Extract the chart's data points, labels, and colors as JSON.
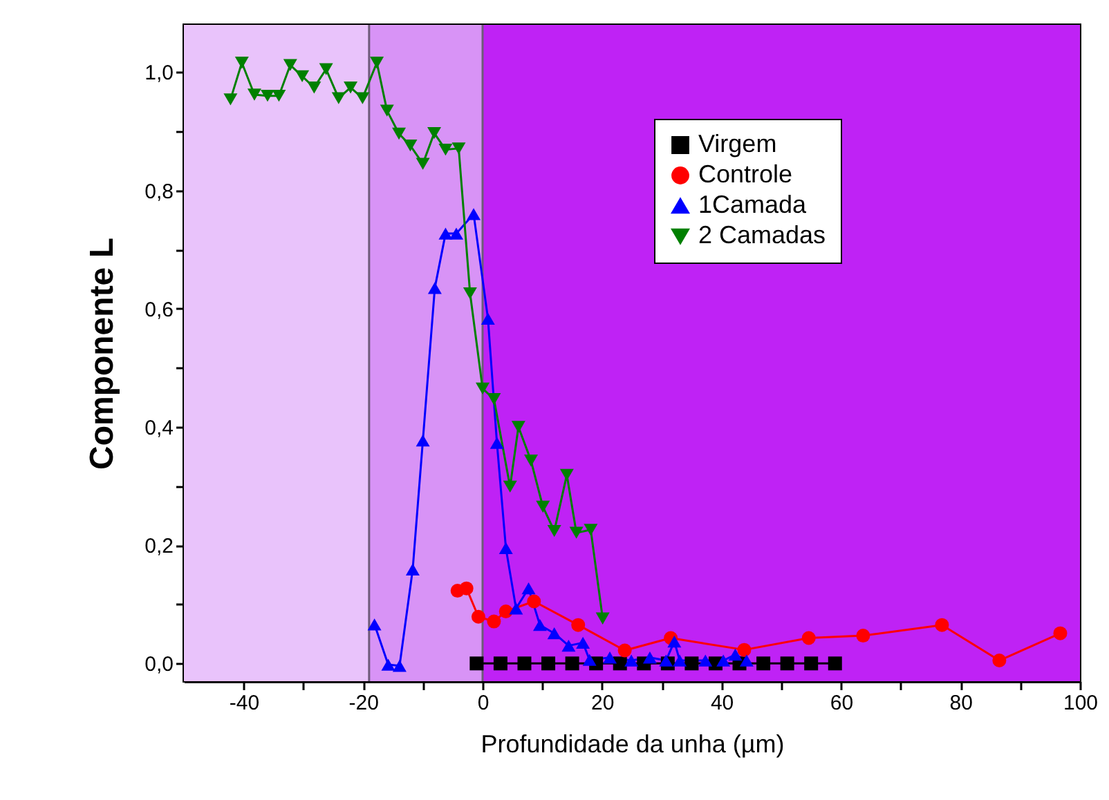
{
  "chart_data": {
    "type": "line",
    "xlabel": "Profundidade da unha (µm)",
    "ylabel": "Componente L",
    "xlim": [
      -50,
      100
    ],
    "ylim": [
      -0.03,
      1.08
    ],
    "xticks": [
      -40,
      {
        "value": -30,
        "label": null
      },
      -20,
      {
        "value": -10,
        "label": null
      },
      0,
      {
        "value": 10,
        "label": null
      },
      20,
      {
        "value": 30,
        "label": null
      },
      40,
      {
        "value": 50,
        "label": null
      },
      60,
      {
        "value": 70,
        "label": null
      },
      80,
      {
        "value": 90,
        "label": null
      },
      100
    ],
    "yticks": [
      {
        "value": 0,
        "label": "0,0"
      },
      {
        "value": 0.1,
        "label": null
      },
      {
        "value": 0.2,
        "label": "0,2"
      },
      {
        "value": 0.3,
        "label": null
      },
      {
        "value": 0.4,
        "label": "0,4"
      },
      {
        "value": 0.5,
        "label": null
      },
      {
        "value": 0.6,
        "label": "0,6"
      },
      {
        "value": 0.7,
        "label": null
      },
      {
        "value": 0.8,
        "label": "0,8"
      },
      {
        "value": 0.9,
        "label": null
      },
      {
        "value": 1.0,
        "label": "1,0"
      }
    ],
    "grid": false,
    "legend": "top right",
    "bands": [
      {
        "axis": "x",
        "from": -50,
        "to": -19,
        "color": "#e9c3fb"
      },
      {
        "axis": "x",
        "from": -19,
        "to": 0,
        "color": "#d893f6"
      },
      {
        "axis": "x",
        "from": 0,
        "to": 100,
        "color": "#bf22f5"
      }
    ],
    "ref_lines": [
      {
        "axis": "x",
        "value": -19,
        "color": "#6e5a7a"
      },
      {
        "axis": "x",
        "value": 0,
        "color": "#6e5a7a"
      }
    ],
    "series": [
      {
        "name": "Virgem",
        "color": "#000000",
        "marker": "square",
        "x": [
          -1,
          3,
          7,
          11,
          15,
          19,
          23,
          27,
          31,
          35,
          39,
          43,
          47,
          51,
          55,
          59
        ],
        "values": [
          0,
          0,
          0,
          0,
          0,
          0,
          0,
          0,
          0,
          0,
          0,
          0,
          0,
          0,
          0,
          0
        ]
      },
      {
        "name": "Controle",
        "color": "#ff0000",
        "marker": "circle",
        "x": [
          -4.2,
          -2.7,
          -0.7,
          1.9,
          3.9,
          8.6,
          16.0,
          23.8,
          31.5,
          43.8,
          54.6,
          63.7,
          76.9,
          86.5,
          96.7
        ],
        "values": [
          0.123,
          0.127,
          0.079,
          0.071,
          0.088,
          0.105,
          0.065,
          0.022,
          0.043,
          0.023,
          0.043,
          0.047,
          0.065,
          0.005,
          0.051
        ]
      },
      {
        "name": "1Camada",
        "color": "#0000ff",
        "marker": "triangle",
        "x": [
          -18.1,
          -15.8,
          -13.9,
          -11.7,
          -10.0,
          -8.0,
          -6.2,
          -4.4,
          -1.5,
          0.9,
          2.4,
          3.9,
          5.6,
          7.7,
          9.6,
          12.0,
          14.4,
          16.8,
          17.9,
          21.3,
          24.9,
          28.0,
          30.7,
          32.1,
          33.0,
          37.3,
          40.3,
          42.3,
          44.2
        ],
        "values": [
          0.066,
          -0.002,
          -0.004,
          0.159,
          0.377,
          0.635,
          0.727,
          0.727,
          0.76,
          0.583,
          0.373,
          0.195,
          0.093,
          0.127,
          0.065,
          0.051,
          0.03,
          0.035,
          0.006,
          0.01,
          0.005,
          0.01,
          0.005,
          0.037,
          0.005,
          0.005,
          0.005,
          0.015,
          0.005
        ]
      },
      {
        "name": "2 Camadas",
        "color": "#008000",
        "marker": "triangle-down",
        "x": [
          -42.2,
          -40.3,
          -38.2,
          -36.0,
          -34.1,
          -32.2,
          -30.2,
          -28.2,
          -26.2,
          -24.1,
          -22.1,
          -20.1,
          -17.7,
          -16.0,
          -14.0,
          -12.1,
          -10.0,
          -8.1,
          -6.2,
          -4.0,
          -2.1,
          0.0,
          1.9,
          4.6,
          6.0,
          8.1,
          10.1,
          12.0,
          14.1,
          15.7,
          18.1,
          20.1
        ],
        "values": [
          0.954,
          1.016,
          0.962,
          0.96,
          0.96,
          1.012,
          0.993,
          0.974,
          1.005,
          0.956,
          0.974,
          0.956,
          1.016,
          0.935,
          0.896,
          0.876,
          0.845,
          0.897,
          0.869,
          0.871,
          0.626,
          0.465,
          0.447,
          0.299,
          0.4,
          0.343,
          0.265,
          0.224,
          0.319,
          0.221,
          0.226,
          0.076
        ]
      }
    ]
  }
}
